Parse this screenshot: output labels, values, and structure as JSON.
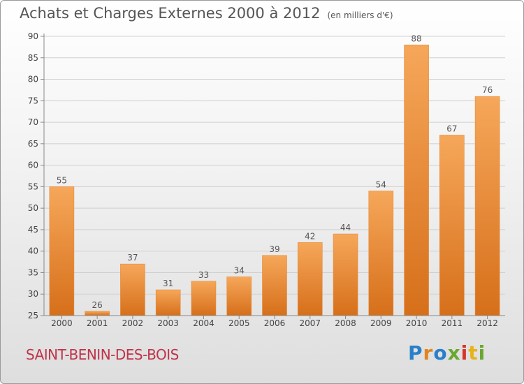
{
  "header": {
    "title": "Achats et Charges Externes 2000 à 2012",
    "unit": "(en milliers d'€)"
  },
  "commune": "SAINT-BENIN-DES-BOIS",
  "logo": {
    "text": "Proxiti",
    "letters": [
      "P",
      "r",
      "o",
      "x",
      "i",
      "t",
      "i"
    ]
  },
  "colors": {
    "bar_light": "#f6a75a",
    "bar_dark": "#d66f1a",
    "commune_text": "#c0334a",
    "grid": "#cfcfcf"
  },
  "chart_data": {
    "type": "bar",
    "categories": [
      "2000",
      "2001",
      "2002",
      "2003",
      "2004",
      "2005",
      "2006",
      "2007",
      "2008",
      "2009",
      "2010",
      "2011",
      "2012"
    ],
    "values": [
      55,
      26,
      37,
      31,
      33,
      34,
      39,
      42,
      44,
      54,
      88,
      67,
      76
    ],
    "title": "Achats et Charges Externes 2000 à 2012",
    "subtitle": "(en milliers d'€)",
    "ylim": [
      25,
      90
    ],
    "yticks": [
      25,
      30,
      35,
      40,
      45,
      50,
      55,
      60,
      65,
      70,
      75,
      80,
      85,
      90
    ],
    "grid": true
  }
}
